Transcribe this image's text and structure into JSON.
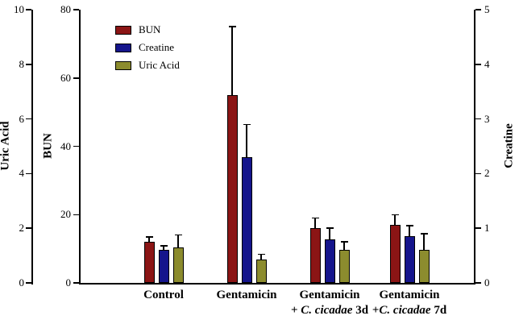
{
  "chart_data": {
    "type": "bar",
    "title": "",
    "legend": {
      "position": "top-left",
      "entries": [
        "BUN",
        "Creatine",
        "Uric Acid"
      ]
    },
    "axes": {
      "left_outer": {
        "label": "Uric Acid",
        "ticks": [
          "0",
          "2",
          "4",
          "6",
          "8",
          "10"
        ],
        "range": [
          0,
          10
        ]
      },
      "left_inner": {
        "label": "BUN",
        "ticks": [
          "0",
          "20",
          "40",
          "60",
          "80"
        ],
        "range": [
          0,
          80
        ]
      },
      "right": {
        "label": "Creatine",
        "ticks": [
          "0",
          "1",
          "2",
          "3",
          "4",
          "5"
        ],
        "range": [
          0,
          5
        ]
      },
      "x": {
        "categories_plain": [
          "Control",
          "Gentamicin",
          "Gentamicin + C. cicadae 3d",
          "Gentamicin +C. cicadae 7d"
        ]
      }
    },
    "series": [
      {
        "name": "BUN",
        "axis": "left_inner",
        "axis_max": 80,
        "color": "#8b1515",
        "values": [
          12,
          55,
          16,
          17
        ],
        "errors": [
          1.5,
          20,
          3,
          3
        ]
      },
      {
        "name": "Creatine",
        "axis": "right",
        "axis_max": 5,
        "color": "#15158c",
        "values": [
          0.6,
          2.3,
          0.8,
          0.85
        ],
        "errors": [
          0.08,
          0.6,
          0.2,
          0.2
        ]
      },
      {
        "name": "Uric Acid",
        "axis": "left_outer",
        "axis_max": 10,
        "color": "#8c8c2e",
        "values": [
          1.3,
          0.85,
          1.2,
          1.2
        ],
        "errors": [
          0.45,
          0.2,
          0.3,
          0.6
        ]
      }
    ],
    "categories": [
      {
        "lines": [
          [
            {
              "t": "Control"
            }
          ]
        ]
      },
      {
        "lines": [
          [
            {
              "t": "Gentamicin"
            }
          ]
        ]
      },
      {
        "lines": [
          [
            {
              "t": "Gentamicin"
            }
          ],
          [
            {
              "t": "+ "
            },
            {
              "t": "C. cicadae",
              "i": true
            },
            {
              "t": " 3d"
            }
          ]
        ]
      },
      {
        "lines": [
          [
            {
              "t": "Gentamicin"
            }
          ],
          [
            {
              "t": "+"
            },
            {
              "t": "C. cicadae",
              "i": true
            },
            {
              "t": " 7d"
            }
          ]
        ]
      }
    ]
  }
}
